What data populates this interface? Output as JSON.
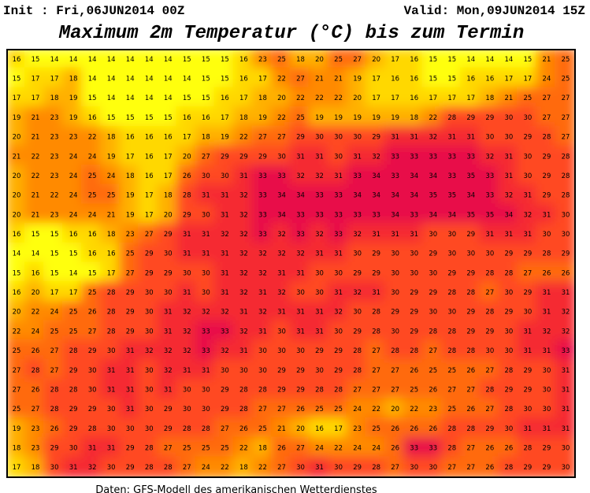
{
  "header": {
    "init": "Init : Fri,06JUN2014 00Z",
    "valid": "Valid: Mon,09JUN2014 15Z",
    "title": "Maximum 2m Temperatur (°C) bis zum Termin"
  },
  "map": {
    "values": [
      [
        16,
        15,
        14,
        14,
        14,
        14,
        14,
        14,
        14,
        15,
        15,
        15,
        16,
        23,
        25,
        18,
        20,
        25,
        27,
        20,
        17,
        16,
        15,
        15,
        14,
        14,
        14,
        15,
        21,
        25
      ],
      [
        15,
        17,
        17,
        18,
        14,
        14,
        14,
        14,
        14,
        14,
        15,
        15,
        16,
        17,
        22,
        27,
        21,
        21,
        19,
        17,
        16,
        16,
        15,
        15,
        16,
        16,
        17,
        17,
        24,
        25
      ],
      [
        17,
        17,
        18,
        19,
        15,
        14,
        14,
        14,
        14,
        15,
        15,
        16,
        17,
        18,
        20,
        22,
        22,
        22,
        20,
        17,
        17,
        16,
        17,
        17,
        17,
        18,
        21,
        25,
        27,
        27
      ],
      [
        19,
        21,
        23,
        19,
        16,
        15,
        15,
        15,
        15,
        16,
        16,
        17,
        18,
        19,
        22,
        25,
        19,
        19,
        19,
        19,
        19,
        18,
        22,
        28,
        29,
        29,
        30,
        30,
        27,
        27
      ],
      [
        20,
        21,
        23,
        23,
        22,
        18,
        16,
        16,
        16,
        17,
        18,
        19,
        22,
        27,
        27,
        29,
        30,
        30,
        30,
        29,
        31,
        31,
        32,
        31,
        31,
        30,
        30,
        29,
        28,
        27
      ],
      [
        21,
        22,
        23,
        24,
        24,
        19,
        17,
        16,
        17,
        20,
        27,
        29,
        29,
        29,
        30,
        31,
        31,
        30,
        31,
        32,
        33,
        33,
        33,
        33,
        33,
        32,
        31,
        30,
        29,
        28
      ],
      [
        20,
        22,
        23,
        24,
        25,
        24,
        18,
        16,
        17,
        26,
        30,
        30,
        31,
        33,
        33,
        32,
        32,
        31,
        33,
        34,
        33,
        34,
        34,
        33,
        35,
        33,
        31,
        30,
        29,
        28
      ],
      [
        20,
        21,
        22,
        24,
        25,
        25,
        19,
        17,
        18,
        28,
        31,
        31,
        32,
        33,
        34,
        34,
        33,
        33,
        34,
        34,
        34,
        34,
        35,
        35,
        34,
        33,
        32,
        31,
        29,
        28
      ],
      [
        20,
        21,
        23,
        24,
        24,
        21,
        19,
        17,
        20,
        29,
        30,
        31,
        32,
        33,
        34,
        33,
        33,
        33,
        33,
        33,
        34,
        33,
        34,
        34,
        35,
        35,
        34,
        32,
        31,
        30
      ],
      [
        16,
        15,
        15,
        16,
        16,
        18,
        23,
        27,
        29,
        31,
        31,
        32,
        32,
        33,
        32,
        33,
        32,
        33,
        32,
        31,
        31,
        31,
        30,
        30,
        29,
        31,
        31,
        31,
        30,
        30
      ],
      [
        14,
        14,
        15,
        15,
        16,
        16,
        25,
        29,
        30,
        31,
        31,
        31,
        32,
        32,
        32,
        32,
        31,
        31,
        30,
        29,
        30,
        30,
        29,
        30,
        30,
        30,
        29,
        29,
        28,
        29
      ],
      [
        15,
        16,
        15,
        14,
        15,
        17,
        27,
        29,
        29,
        30,
        30,
        31,
        32,
        32,
        31,
        31,
        30,
        30,
        29,
        29,
        30,
        30,
        30,
        29,
        29,
        28,
        28,
        27,
        26,
        26
      ],
      [
        16,
        20,
        17,
        17,
        25,
        28,
        29,
        30,
        30,
        31,
        30,
        31,
        32,
        31,
        32,
        30,
        30,
        31,
        32,
        31,
        30,
        29,
        29,
        28,
        28,
        27,
        30,
        29,
        31,
        31
      ],
      [
        20,
        22,
        24,
        25,
        26,
        28,
        29,
        30,
        31,
        32,
        32,
        32,
        31,
        32,
        31,
        31,
        31,
        32,
        30,
        28,
        29,
        29,
        30,
        30,
        29,
        28,
        29,
        30,
        31,
        32
      ],
      [
        22,
        24,
        25,
        25,
        27,
        28,
        29,
        30,
        31,
        32,
        33,
        33,
        32,
        31,
        30,
        31,
        31,
        30,
        29,
        28,
        30,
        29,
        28,
        28,
        29,
        29,
        30,
        31,
        32,
        32
      ],
      [
        25,
        26,
        27,
        28,
        29,
        30,
        31,
        32,
        32,
        32,
        33,
        32,
        31,
        30,
        30,
        30,
        29,
        29,
        28,
        27,
        28,
        28,
        27,
        28,
        28,
        30,
        30,
        31,
        31,
        33
      ],
      [
        27,
        28,
        27,
        29,
        30,
        31,
        31,
        30,
        32,
        31,
        31,
        30,
        30,
        30,
        29,
        29,
        30,
        29,
        28,
        27,
        27,
        26,
        25,
        25,
        26,
        27,
        28,
        29,
        30,
        31
      ],
      [
        27,
        26,
        28,
        28,
        30,
        31,
        31,
        30,
        31,
        30,
        30,
        29,
        28,
        28,
        29,
        29,
        28,
        28,
        27,
        27,
        27,
        25,
        26,
        27,
        27,
        28,
        29,
        29,
        30,
        31
      ],
      [
        25,
        27,
        28,
        29,
        29,
        30,
        31,
        30,
        29,
        30,
        30,
        29,
        28,
        27,
        27,
        26,
        25,
        25,
        24,
        22,
        20,
        22,
        23,
        25,
        26,
        27,
        28,
        30,
        30,
        31
      ],
      [
        19,
        23,
        26,
        29,
        28,
        30,
        30,
        30,
        29,
        28,
        28,
        27,
        26,
        25,
        21,
        20,
        16,
        17,
        23,
        25,
        26,
        26,
        26,
        28,
        28,
        29,
        30,
        31,
        31,
        31
      ],
      [
        18,
        23,
        29,
        30,
        31,
        31,
        29,
        28,
        27,
        25,
        25,
        25,
        22,
        18,
        26,
        27,
        24,
        22,
        24,
        24,
        26,
        33,
        33,
        28,
        27,
        26,
        26,
        28,
        29,
        30
      ],
      [
        17,
        18,
        30,
        31,
        32,
        30,
        29,
        28,
        28,
        27,
        24,
        22,
        18,
        22,
        27,
        30,
        31,
        30,
        29,
        28,
        27,
        30,
        30,
        27,
        27,
        26,
        28,
        29,
        29,
        30
      ]
    ]
  },
  "footer": "Daten: GFS-Modell des amerikanischen Wetterdienstes"
}
